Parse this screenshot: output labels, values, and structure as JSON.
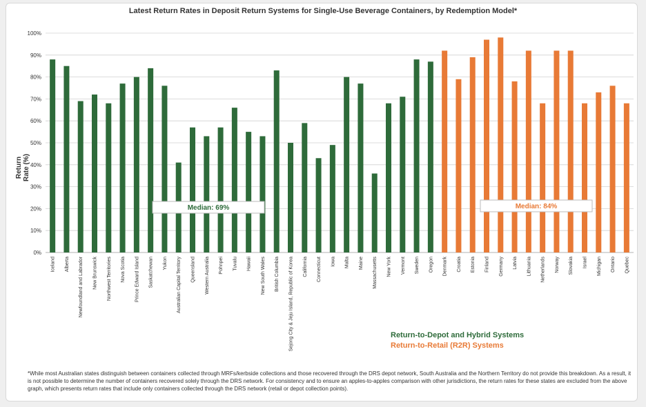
{
  "chart_data": {
    "type": "bar",
    "title": "Latest Return Rates in Deposit Return Systems for Single-Use Beverage Containers, by Redemption Model*",
    "ylabel": "Return Rate (%)",
    "ylim": [
      0,
      100
    ],
    "yticks": [
      "0%",
      "10%",
      "20%",
      "30%",
      "40%",
      "50%",
      "60%",
      "70%",
      "80%",
      "90%",
      "100%"
    ],
    "grid": true,
    "categories": [
      "Iceland",
      "Alberta",
      "Newfoundland and Labrador",
      "New Brunswick",
      "Northwest Territories",
      "Nova Scotia",
      "Prince Edward Island",
      "Saskatchewan",
      "Yukon",
      "Australian Capital Territory",
      "Queensland",
      "Western Australia",
      "Pohnpei",
      "Tuvalu",
      "Hawaii",
      "New South Wales",
      "British Columbia",
      "Sejong City & Jeju Island, Republic of Korea",
      "California",
      "Connecticut",
      "Iowa",
      "Malta",
      "Maine",
      "Massachusetts",
      "New York",
      "Vermont",
      "Sweden",
      "Oregon",
      "Denmark",
      "Croatia",
      "Estonia",
      "Finland",
      "Germany",
      "Latvia",
      "Lithuania",
      "Netherlands",
      "Norway",
      "Slovakia",
      "Israel",
      "Michigan",
      "Ontario",
      "Quebec"
    ],
    "values": [
      88,
      85,
      69,
      72,
      68,
      77,
      80,
      84,
      76,
      41,
      57,
      53,
      57,
      66,
      55,
      53,
      83,
      50,
      59,
      43,
      49,
      80,
      77,
      36,
      68,
      71,
      88,
      87,
      92,
      79,
      89,
      97,
      98,
      78,
      92,
      68,
      92,
      92,
      68,
      73,
      76,
      68
    ],
    "series": [
      {
        "name": "Return-to-Depot and Hybrid Systems",
        "color": "#2e6b3a",
        "start": 0,
        "count": 28,
        "median_label": "Median: 69%",
        "median": 69
      },
      {
        "name": "Return-to-Retail (R2R) Systems",
        "color": "#e87a36",
        "start": 28,
        "count": 14,
        "median_label": "Median: 84%",
        "median": 84
      }
    ],
    "legend_position": "bottom-center"
  },
  "legend": {
    "depot_label": "Return-to-Depot and Hybrid Systems",
    "retail_label": "Return-to-Retail (R2R) Systems"
  },
  "footnote": "*While most Australian states distinguish between containers collected through MRFs/kerbside collections and those recovered through the DRS depot network, South Australia and the Northern Territory do not provide this breakdown. As a result, it is not possible to determine the number of containers recovered solely through the DRS network. For consistency and to ensure an apples-to-apples comparison with other jurisdictions, the return rates for these states are excluded from the above graph, which presents return rates that include only containers collected through the DRS network (retail or depot collection points).",
  "colors": {
    "depot": "#2e6b3a",
    "retail": "#e87a36",
    "grid": "#d0d0d0"
  }
}
